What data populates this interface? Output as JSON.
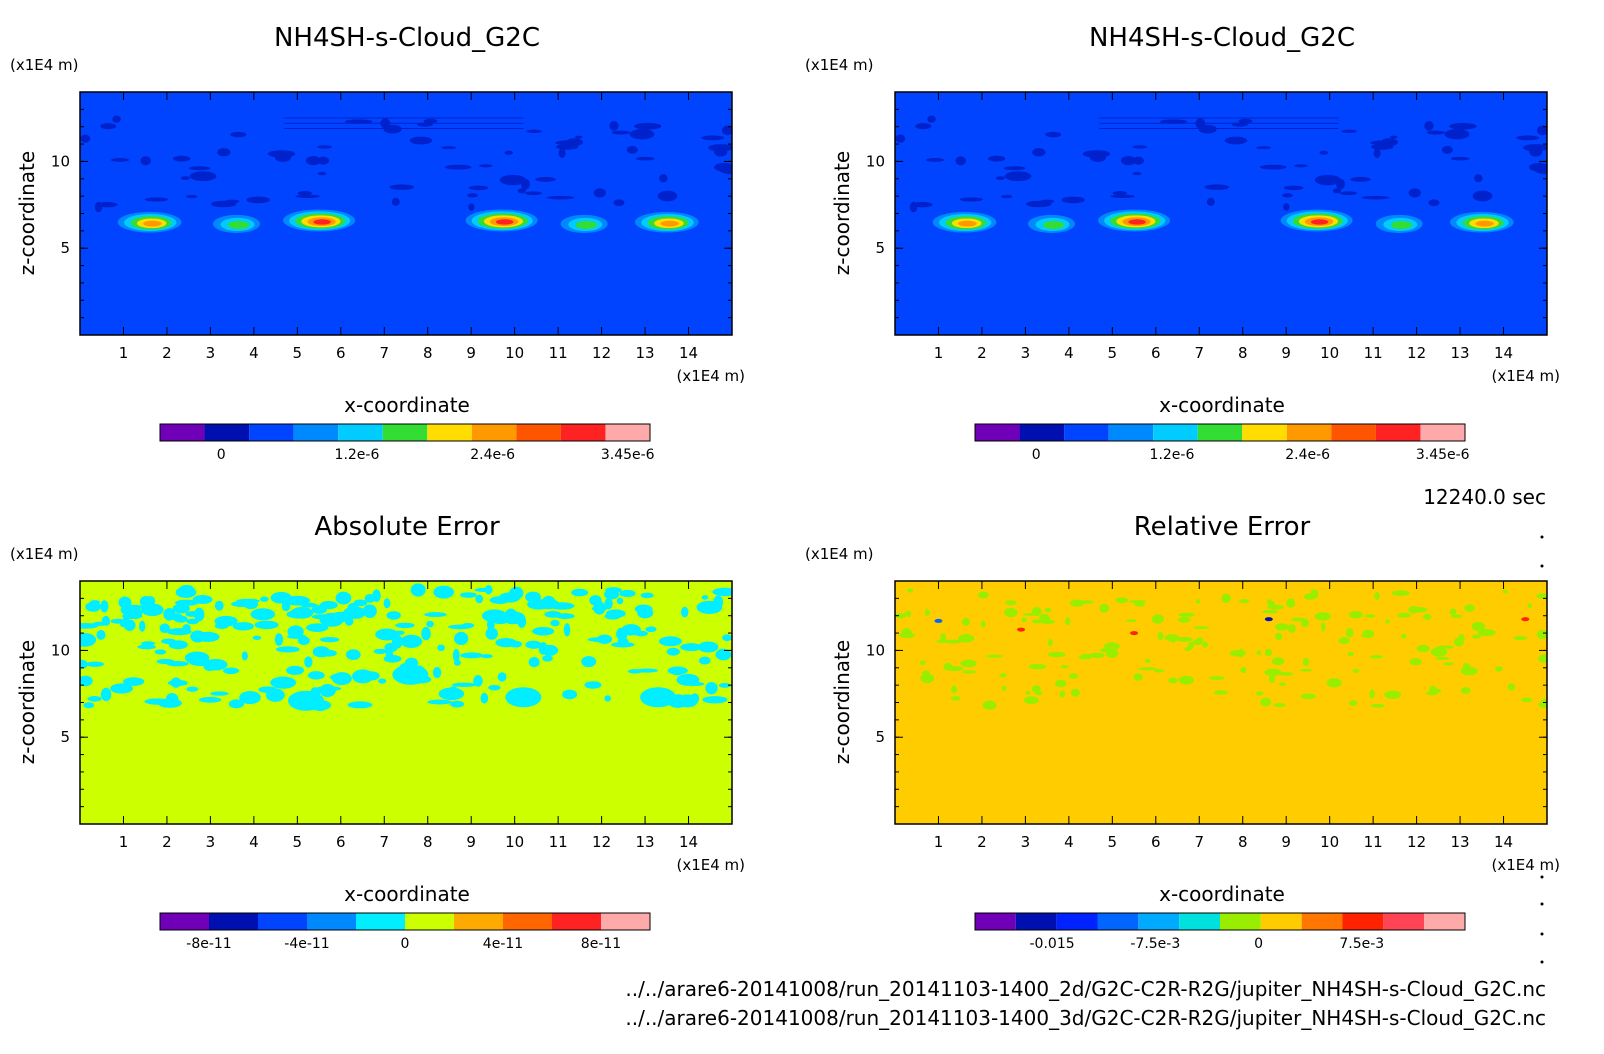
{
  "figure": {
    "time_label": "12240.0 sec",
    "files": [
      "../../arare6-20141008/run_20141103-1400_2d/G2C-C2R-R2G/jupiter_NH4SH-s-Cloud_G2C.nc",
      "../../arare6-20141008/run_20141103-1400_3d/G2C-C2R-R2G/jupiter_NH4SH-s-Cloud_G2C.nc"
    ]
  },
  "chart_data": [
    {
      "type": "heatmap",
      "title": "NH4SH-s-Cloud_G2C",
      "xlabel": "x-coordinate",
      "ylabel": "z-coordinate",
      "x_unit": "(x1E4 m)",
      "y_unit": "(x1E4 m)",
      "xlim": [
        0,
        15
      ],
      "ylim": [
        0,
        14
      ],
      "x_ticks": [
        "1",
        "2",
        "3",
        "4",
        "5",
        "6",
        "7",
        "8",
        "9",
        "10",
        "11",
        "12",
        "13",
        "14"
      ],
      "y_ticks": [
        "5",
        "10"
      ],
      "background_color": "#0044ff",
      "colors": [
        "#7000b8",
        "#0010b0",
        "#0044ff",
        "#0088ff",
        "#00ccff",
        "#33dd33",
        "#ffdd00",
        "#ff9900",
        "#ff5500",
        "#ff2222",
        "#ffaaaa"
      ],
      "colorbar_ticks": [
        {
          "value": 0,
          "label": "0"
        },
        {
          "value": 1.2e-06,
          "label": "1.2e-6"
        },
        {
          "value": 2.4e-06,
          "label": "2.4e-6"
        },
        {
          "value": 3.45e-06,
          "label": "3.45e-6"
        }
      ],
      "cloud_maxima": [
        {
          "x": 1.6,
          "z": 6.5,
          "peak": 2.9e-06
        },
        {
          "x": 3.6,
          "z": 6.4,
          "peak": 1.8e-06
        },
        {
          "x": 5.5,
          "z": 6.6,
          "peak": 3.45e-06
        },
        {
          "x": 9.7,
          "z": 6.6,
          "peak": 3.45e-06
        },
        {
          "x": 11.6,
          "z": 6.4,
          "peak": 1.8e-06
        },
        {
          "x": 13.5,
          "z": 6.5,
          "peak": 2.9e-06
        }
      ]
    },
    {
      "type": "heatmap",
      "title": "NH4SH-s-Cloud_G2C",
      "xlabel": "x-coordinate",
      "ylabel": "z-coordinate",
      "x_unit": "(x1E4 m)",
      "y_unit": "(x1E4 m)",
      "xlim": [
        0,
        15
      ],
      "ylim": [
        0,
        14
      ],
      "x_ticks": [
        "1",
        "2",
        "3",
        "4",
        "5",
        "6",
        "7",
        "8",
        "9",
        "10",
        "11",
        "12",
        "13",
        "14"
      ],
      "y_ticks": [
        "5",
        "10"
      ],
      "background_color": "#0044ff",
      "colors": [
        "#7000b8",
        "#0010b0",
        "#0044ff",
        "#0088ff",
        "#00ccff",
        "#33dd33",
        "#ffdd00",
        "#ff9900",
        "#ff5500",
        "#ff2222",
        "#ffaaaa"
      ],
      "colorbar_ticks": [
        {
          "value": 0,
          "label": "0"
        },
        {
          "value": 1.2e-06,
          "label": "1.2e-6"
        },
        {
          "value": 2.4e-06,
          "label": "2.4e-6"
        },
        {
          "value": 3.45e-06,
          "label": "3.45e-6"
        }
      ],
      "cloud_maxima": [
        {
          "x": 1.6,
          "z": 6.5,
          "peak": 2.9e-06
        },
        {
          "x": 3.6,
          "z": 6.4,
          "peak": 1.8e-06
        },
        {
          "x": 5.5,
          "z": 6.6,
          "peak": 3.45e-06
        },
        {
          "x": 9.7,
          "z": 6.6,
          "peak": 3.45e-06
        },
        {
          "x": 11.6,
          "z": 6.4,
          "peak": 1.8e-06
        },
        {
          "x": 13.5,
          "z": 6.5,
          "peak": 2.9e-06
        }
      ]
    },
    {
      "type": "heatmap",
      "title": "Absolute Error",
      "xlabel": "x-coordinate",
      "ylabel": "z-coordinate",
      "x_unit": "(x1E4 m)",
      "y_unit": "(x1E4 m)",
      "xlim": [
        0,
        15
      ],
      "ylim": [
        0,
        14
      ],
      "x_ticks": [
        "1",
        "2",
        "3",
        "4",
        "5",
        "6",
        "7",
        "8",
        "9",
        "10",
        "11",
        "12",
        "13",
        "14"
      ],
      "y_ticks": [
        "5",
        "10"
      ],
      "background_color": "#ccff00",
      "colors": [
        "#7000b8",
        "#0010b0",
        "#0044ff",
        "#0088ff",
        "#00eeff",
        "#ccff00",
        "#ffaa00",
        "#ff6600",
        "#ff2222",
        "#ffaaaa"
      ],
      "colorbar_ticks": [
        {
          "value": -8e-11,
          "label": "-8e-11"
        },
        {
          "value": -4e-11,
          "label": "-4e-11"
        },
        {
          "value": 0,
          "label": "0"
        },
        {
          "value": 4e-11,
          "label": "4e-11"
        },
        {
          "value": 8e-11,
          "label": "8e-11"
        }
      ],
      "anomaly_level": -1e-11,
      "anomaly_band_z": [
        6.5,
        13.5
      ]
    },
    {
      "type": "heatmap",
      "title": "Relative Error",
      "xlabel": "x-coordinate",
      "ylabel": "z-coordinate",
      "x_unit": "(x1E4 m)",
      "y_unit": "(x1E4 m)",
      "xlim": [
        0,
        15
      ],
      "ylim": [
        0,
        14
      ],
      "x_ticks": [
        "1",
        "2",
        "3",
        "4",
        "5",
        "6",
        "7",
        "8",
        "9",
        "10",
        "11",
        "12",
        "13",
        "14"
      ],
      "y_ticks": [
        "5",
        "10"
      ],
      "background_color": "#ffcc00",
      "colors": [
        "#7000b8",
        "#0010b0",
        "#0022ff",
        "#0066ff",
        "#00aaff",
        "#00e0dd",
        "#99ee00",
        "#ffcc00",
        "#ff7700",
        "#ff2200",
        "#ff4455",
        "#ffaaaa"
      ],
      "colorbar_ticks": [
        {
          "value": -0.015,
          "label": "-0.015"
        },
        {
          "value": -0.0075,
          "label": "-7.5e-3"
        },
        {
          "value": 0,
          "label": "0"
        },
        {
          "value": 0.0075,
          "label": "7.5e-3"
        }
      ],
      "anomaly_level": -0.001,
      "anomaly_band_z": [
        6.5,
        13.5
      ]
    }
  ]
}
